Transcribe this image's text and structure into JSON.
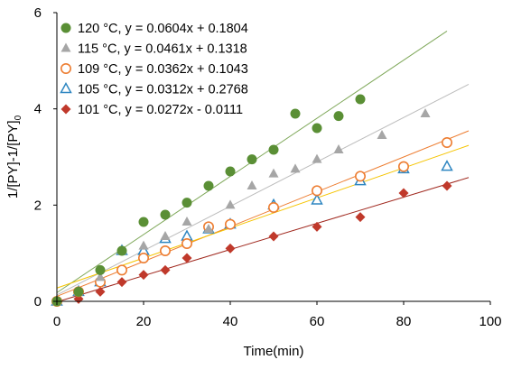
{
  "chart_data": {
    "type": "scatter",
    "title": "",
    "xlabel": "Time(min)",
    "ylabel_main": "1/[PY]-1/[PY]",
    "ylabel_subscript": "0",
    "xlim": [
      0,
      100
    ],
    "ylim": [
      0,
      6
    ],
    "xticks": [
      0,
      20,
      40,
      60,
      80,
      100
    ],
    "yticks": [
      0,
      2,
      4,
      6
    ],
    "grid": false,
    "legend_position": "top-left",
    "series": [
      {
        "name": "120  °C, y = 0.0604x + 0.1804",
        "marker": "filled-circle",
        "color": "#5a8f35",
        "trend_color": "#7fa85a",
        "slope": 0.0604,
        "intercept": 0.1804,
        "trend_x": [
          0,
          90
        ],
        "x": [
          0,
          5,
          10,
          15,
          20,
          25,
          30,
          35,
          40,
          45,
          50,
          55,
          60,
          65,
          70
        ],
        "y": [
          0,
          0.2,
          0.65,
          1.05,
          1.65,
          1.8,
          2.05,
          2.4,
          2.7,
          2.95,
          3.15,
          3.9,
          3.6,
          3.85,
          4.2
        ]
      },
      {
        "name": "115  °C, y = 0.0461x + 0.1318",
        "marker": "filled-triangle",
        "color": "#a6a6a6",
        "trend_color": "#bcbcbc",
        "slope": 0.0461,
        "intercept": 0.1318,
        "trend_x": [
          0,
          95
        ],
        "x": [
          0,
          5,
          10,
          15,
          20,
          25,
          30,
          35,
          40,
          45,
          50,
          55,
          60,
          65,
          75,
          85
        ],
        "y": [
          0,
          0.2,
          0.5,
          1.05,
          1.15,
          1.35,
          1.65,
          1.5,
          2.0,
          2.4,
          2.65,
          2.75,
          2.95,
          3.15,
          3.45,
          3.9
        ]
      },
      {
        "name": "109  °C, y = 0.0362x + 0.1043",
        "marker": "open-circle",
        "color": "#ed7d31",
        "trend_color": "#ed7d31",
        "slope": 0.0362,
        "intercept": 0.1043,
        "trend_x": [
          0,
          95
        ],
        "x": [
          0,
          5,
          10,
          15,
          20,
          25,
          30,
          35,
          40,
          50,
          60,
          70,
          80,
          90
        ],
        "y": [
          0,
          0.2,
          0.4,
          0.65,
          0.9,
          1.05,
          1.2,
          1.55,
          1.6,
          1.95,
          2.3,
          2.6,
          2.8,
          3.3
        ]
      },
      {
        "name": "105 °C, y = 0.0312x + 0.2768",
        "marker": "open-triangle",
        "color": "#2e86c1",
        "trend_color": "#f5c400",
        "slope": 0.0312,
        "intercept": 0.2768,
        "trend_x": [
          0,
          95
        ],
        "x": [
          0,
          5,
          10,
          15,
          20,
          25,
          30,
          35,
          40,
          50,
          60,
          70,
          80,
          90
        ],
        "y": [
          0,
          0.2,
          0.4,
          1.05,
          1.05,
          1.3,
          1.35,
          1.5,
          1.6,
          2.0,
          2.1,
          2.5,
          2.75,
          2.8
        ]
      },
      {
        "name": "101 °C, y = 0.0272x - 0.0111",
        "marker": "filled-diamond",
        "color": "#c0392b",
        "trend_color": "#a0281e",
        "slope": 0.0272,
        "intercept": -0.0111,
        "trend_x": [
          0,
          95
        ],
        "x": [
          0,
          5,
          10,
          15,
          20,
          25,
          30,
          40,
          50,
          60,
          70,
          80,
          90
        ],
        "y": [
          0,
          0.05,
          0.2,
          0.4,
          0.55,
          0.65,
          0.9,
          1.1,
          1.35,
          1.55,
          1.75,
          2.25,
          2.4
        ]
      }
    ]
  }
}
